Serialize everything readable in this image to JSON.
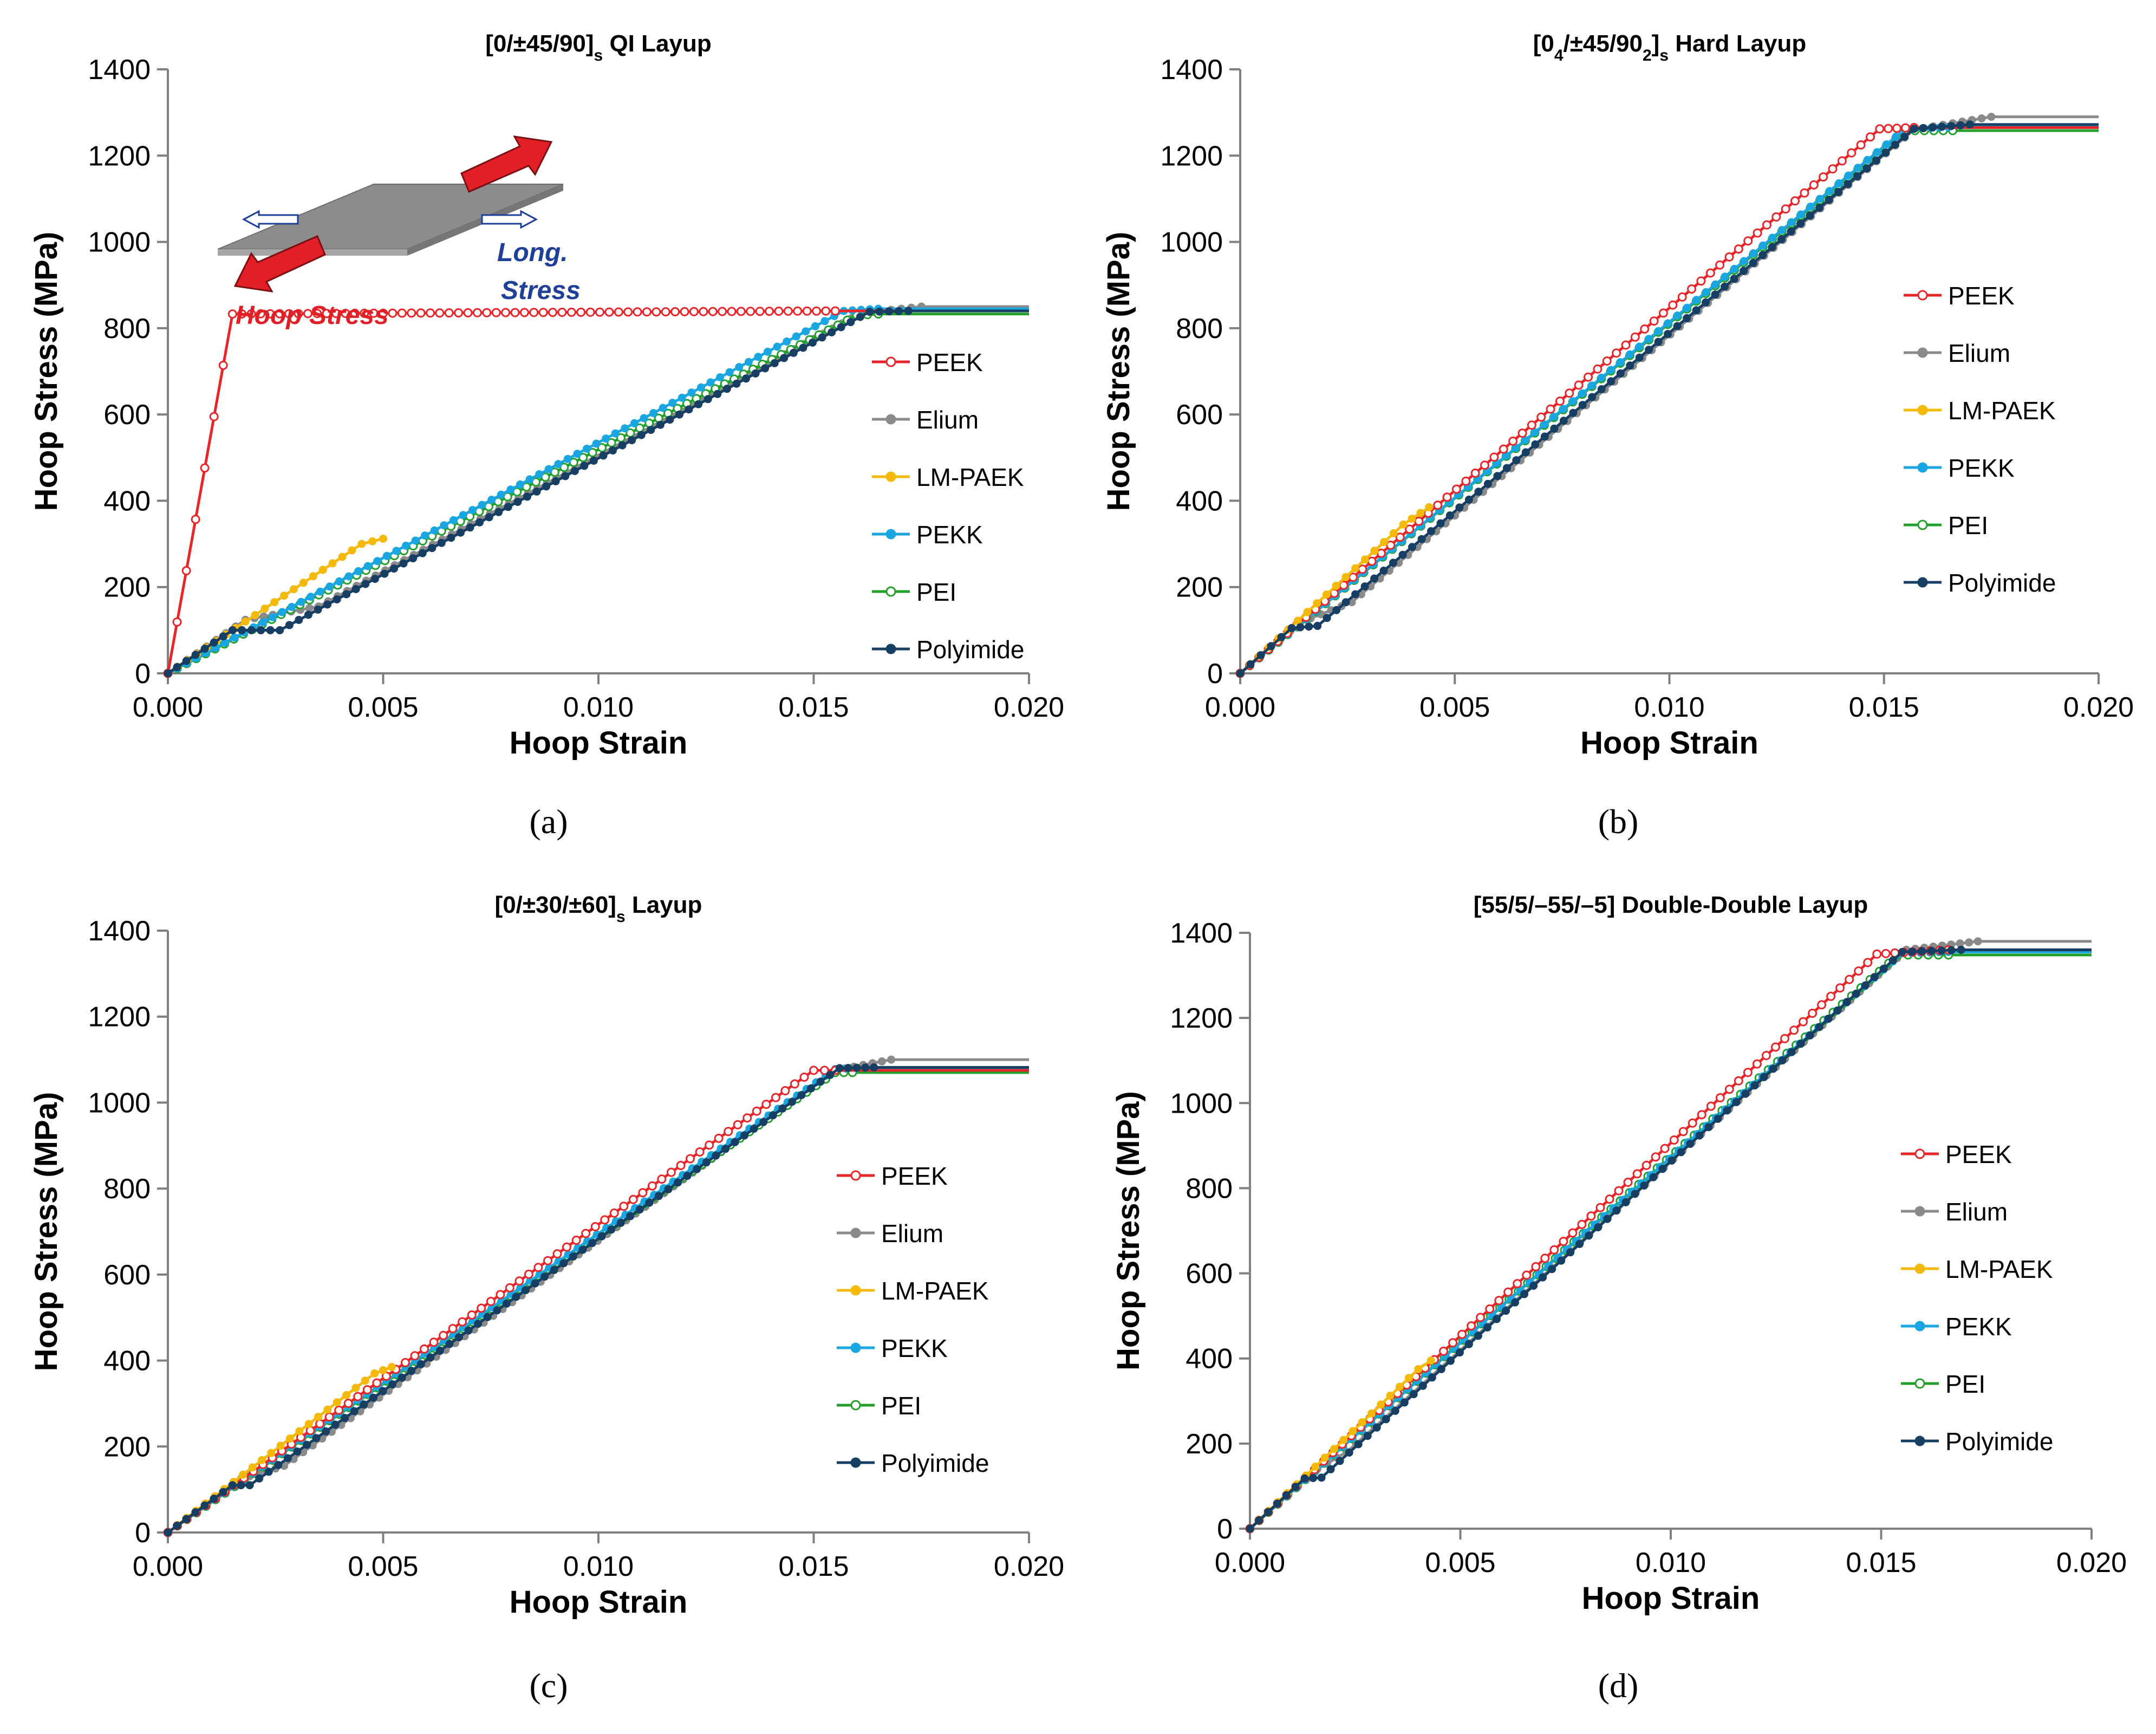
{
  "figure": {
    "panel_labels": [
      "(a)",
      "(b)",
      "(c)",
      "(d)"
    ],
    "series_colors": {
      "PEEK": "#e8262a",
      "Elium": "#8a8a8a",
      "LM-PAEK": "#f5b90a",
      "PEKK": "#1aa6e0",
      "PEI": "#23a02c",
      "Polyimide": "#173e63"
    },
    "inset": {
      "hoop_label": "Hoop Stress",
      "long_label_1": "Long.",
      "long_label_2": "Stress",
      "hoop_color": "#e21f26",
      "long_color": "#1f3f99",
      "plate_color": "#8c8c8c"
    }
  },
  "chart_data": [
    {
      "type": "line",
      "title_main": "[0/±45/90]",
      "title_sub": "s",
      "title_rest": " QI Layup",
      "xlabel": "Hoop Strain",
      "ylabel": "Hoop Stress (MPa)",
      "xlim": [
        0,
        0.02
      ],
      "ylim": [
        0,
        1400
      ],
      "xticks": [
        "0.000",
        "0.005",
        "0.010",
        "0.015",
        "0.020"
      ],
      "yticks": [
        "0",
        "200",
        "400",
        "600",
        "800",
        "1000",
        "1200",
        "1400"
      ],
      "legend_position": "right",
      "series": [
        {
          "name": "PEEK",
          "marker": "open-circle",
          "points": [
            [
              0,
              0
            ],
            [
              0.0015,
              833
            ],
            [
              0.0155,
              840
            ],
            [
              0.02,
              840
            ]
          ],
          "fit": "linear-to-failure"
        },
        {
          "name": "Elium",
          "marker": "filled-circle",
          "points": [
            [
              0,
              0
            ],
            [
              0.0018,
              124
            ],
            [
              0.0035,
              155
            ],
            [
              0.0161,
              835
            ],
            [
              0.0175,
              850
            ],
            [
              0.02,
              850
            ]
          ]
        },
        {
          "name": "LM-PAEK",
          "marker": "filled-circle",
          "points": [
            [
              0,
              0
            ],
            [
              0.0045,
              300
            ],
            [
              0.005,
              312
            ]
          ]
        },
        {
          "name": "PEKK",
          "marker": "filled-circle",
          "points": [
            [
              0,
              0
            ],
            [
              0.0157,
              840
            ],
            [
              0.0165,
              845
            ],
            [
              0.02,
              845
            ]
          ]
        },
        {
          "name": "PEI",
          "marker": "open-circle",
          "points": [
            [
              0,
              0
            ],
            [
              0.016,
              830
            ],
            [
              0.0165,
              833
            ],
            [
              0.02,
              833
            ]
          ]
        },
        {
          "name": "Polyimide",
          "marker": "filled-circle",
          "points": [
            [
              0,
              0
            ],
            [
              0.0015,
              100
            ],
            [
              0.0026,
              100
            ],
            [
              0.0163,
              838
            ],
            [
              0.0172,
              840
            ],
            [
              0.02,
              840
            ]
          ]
        }
      ]
    },
    {
      "type": "line",
      "title_main": "[0",
      "title_sub0": "4",
      "title_mid": "/±45/90",
      "title_sub1": "2",
      "title_close": "]",
      "title_sub": "s",
      "title_rest": " Hard Layup",
      "xlabel": "Hoop Strain",
      "ylabel": "Hoop Stress (MPa)",
      "xlim": [
        0,
        0.02
      ],
      "ylim": [
        0,
        1400
      ],
      "xticks": [
        "0.000",
        "0.005",
        "0.010",
        "0.015",
        "0.020"
      ],
      "yticks": [
        "0",
        "200",
        "400",
        "600",
        "800",
        "1000",
        "1200",
        "1400"
      ],
      "legend_position": "right",
      "series": [
        {
          "name": "PEEK",
          "marker": "open-circle",
          "points": [
            [
              0,
              0
            ],
            [
              0.0149,
              1262
            ],
            [
              0.0157,
              1265
            ],
            [
              0.02,
              1265
            ]
          ]
        },
        {
          "name": "Elium",
          "marker": "filled-circle",
          "points": [
            [
              0,
              0
            ],
            [
              0.0014,
              118
            ],
            [
              0.0026,
              165
            ],
            [
              0.0157,
              1260
            ],
            [
              0.0175,
              1290
            ],
            [
              0.02,
              1290
            ]
          ]
        },
        {
          "name": "LM-PAEK",
          "marker": "filled-circle",
          "points": [
            [
              0,
              0
            ],
            [
              0.0038,
              345
            ],
            [
              0.0044,
              385
            ]
          ]
        },
        {
          "name": "PEKK",
          "marker": "filled-circle",
          "points": [
            [
              0,
              0
            ],
            [
              0.0155,
              1262
            ],
            [
              0.0165,
              1266
            ],
            [
              0.02,
              1266
            ]
          ]
        },
        {
          "name": "PEI",
          "marker": "open-circle",
          "points": [
            [
              0,
              0
            ],
            [
              0.0155,
              1258
            ],
            [
              0.0166,
              1258
            ],
            [
              0.02,
              1258
            ]
          ]
        },
        {
          "name": "Polyimide",
          "marker": "filled-circle",
          "points": [
            [
              0,
              0
            ],
            [
              0.0012,
              105
            ],
            [
              0.0018,
              110
            ],
            [
              0.0157,
              1262
            ],
            [
              0.017,
              1272
            ],
            [
              0.02,
              1272
            ]
          ]
        }
      ]
    },
    {
      "type": "line",
      "title_main": "[0/±30/±60]",
      "title_sub": "s",
      "title_rest": " Layup",
      "xlabel": "Hoop Strain",
      "ylabel": "Hoop Stress (MPa)",
      "xlim": [
        0,
        0.02
      ],
      "ylim": [
        0,
        1400
      ],
      "xticks": [
        "0.000",
        "0.005",
        "0.010",
        "0.015",
        "0.020"
      ],
      "yticks": [
        "0",
        "200",
        "400",
        "600",
        "800",
        "1000",
        "1200",
        "1400"
      ],
      "legend_position": "right",
      "series": [
        {
          "name": "PEEK",
          "marker": "open-circle",
          "points": [
            [
              0,
              0
            ],
            [
              0.015,
              1075
            ],
            [
              0.0155,
              1075
            ],
            [
              0.02,
              1075
            ]
          ]
        },
        {
          "name": "Elium",
          "marker": "filled-circle",
          "points": [
            [
              0,
              0
            ],
            [
              0.0017,
              125
            ],
            [
              0.0027,
              155
            ],
            [
              0.0155,
              1075
            ],
            [
              0.0168,
              1100
            ],
            [
              0.02,
              1100
            ]
          ]
        },
        {
          "name": "LM-PAEK",
          "marker": "filled-circle",
          "points": [
            [
              0,
              0
            ],
            [
              0.0048,
              370
            ],
            [
              0.0052,
              385
            ]
          ]
        },
        {
          "name": "PEKK",
          "marker": "filled-circle",
          "points": [
            [
              0,
              0
            ],
            [
              0.0155,
              1078
            ],
            [
              0.016,
              1080
            ],
            [
              0.02,
              1080
            ]
          ]
        },
        {
          "name": "PEI",
          "marker": "open-circle",
          "points": [
            [
              0,
              0
            ],
            [
              0.0155,
              1070
            ],
            [
              0.0159,
              1070
            ],
            [
              0.02,
              1070
            ]
          ]
        },
        {
          "name": "Polyimide",
          "marker": "filled-circle",
          "points": [
            [
              0,
              0
            ],
            [
              0.0015,
              110
            ],
            [
              0.0019,
              110
            ],
            [
              0.0156,
              1080
            ],
            [
              0.0164,
              1082
            ],
            [
              0.02,
              1082
            ]
          ]
        }
      ]
    },
    {
      "type": "line",
      "title_main": "[55/5/–55/–5] Double-Double Layup",
      "title_sub": "",
      "title_rest": "",
      "xlabel": "Hoop Strain",
      "ylabel": "Hoop Stress (MPa)",
      "xlim": [
        0,
        0.02
      ],
      "ylim": [
        0,
        1400
      ],
      "xticks": [
        "0.000",
        "0.005",
        "0.010",
        "0.015",
        "0.020"
      ],
      "yticks": [
        "0",
        "200",
        "400",
        "600",
        "800",
        "1000",
        "1200",
        "1400"
      ],
      "legend_position": "right",
      "series": [
        {
          "name": "PEEK",
          "marker": "open-circle",
          "points": [
            [
              0,
              0
            ],
            [
              0.0149,
              1350
            ],
            [
              0.0166,
              1360
            ],
            [
              0.02,
              1360
            ]
          ]
        },
        {
          "name": "Elium",
          "marker": "filled-circle",
          "points": [
            [
              0,
              0
            ],
            [
              0.0016,
              140
            ],
            [
              0.0023,
              180
            ],
            [
              0.0156,
              1360
            ],
            [
              0.0173,
              1380
            ],
            [
              0.02,
              1380
            ]
          ]
        },
        {
          "name": "LM-PAEK",
          "marker": "filled-circle",
          "points": [
            [
              0,
              0
            ],
            [
              0.004,
              375
            ],
            [
              0.0043,
              395
            ]
          ]
        },
        {
          "name": "PEKK",
          "marker": "filled-circle",
          "points": [
            [
              0,
              0
            ],
            [
              0.0155,
              1352
            ],
            [
              0.0166,
              1355
            ],
            [
              0.02,
              1355
            ]
          ]
        },
        {
          "name": "PEI",
          "marker": "open-circle",
          "points": [
            [
              0,
              0
            ],
            [
              0.0154,
              1348
            ],
            [
              0.0166,
              1348
            ],
            [
              0.02,
              1348
            ]
          ]
        },
        {
          "name": "Polyimide",
          "marker": "filled-circle",
          "points": [
            [
              0,
              0
            ],
            [
              0.0013,
              118
            ],
            [
              0.0017,
              120
            ],
            [
              0.0155,
              1355
            ],
            [
              0.0169,
              1360
            ],
            [
              0.02,
              1360
            ]
          ]
        }
      ]
    }
  ]
}
